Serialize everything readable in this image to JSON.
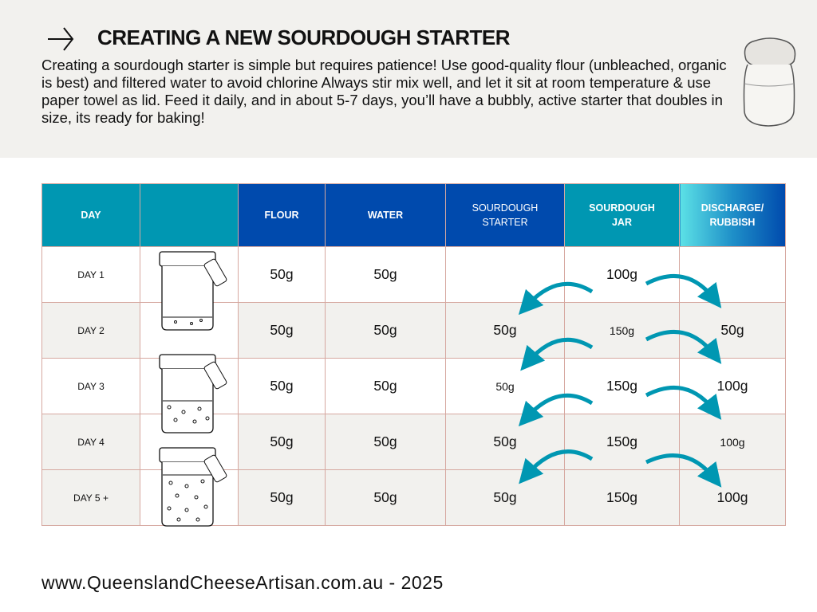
{
  "header": {
    "title": "CREATING A NEW SOURDOUGH STARTER",
    "intro": "Creating a sourdough starter is simple but requires patience! Use good-quality flour (unbleached, organic is best) and filtered water to avoid chlorine  Always stir mix well, and let it sit at room temperature & use paper towel as lid. Feed it daily, and in about 5-7 days, you’ll have a bubbly, active starter that doubles in size, its ready for baking!"
  },
  "table": {
    "headers": [
      "DAY",
      "",
      "FLOUR",
      "WATER",
      "SOURDOUGH STARTER",
      "SOURDOUGH JAR",
      "DISCHARGE/ RUBBISH"
    ],
    "rows": [
      {
        "day": "DAY 1",
        "flour": "50g",
        "water": "50g",
        "starter": "",
        "jar": "100g",
        "discharge": ""
      },
      {
        "day": "DAY 2",
        "flour": "50g",
        "water": "50g",
        "starter": "50g",
        "jar": "150g",
        "discharge": "50g"
      },
      {
        "day": "DAY 3",
        "flour": "50g",
        "water": "50g",
        "starter": "50g",
        "jar": "150g",
        "discharge": "100g"
      },
      {
        "day": "DAY 4",
        "flour": "50g",
        "water": "50g",
        "starter": "50g",
        "jar": "150g",
        "discharge": "100g"
      },
      {
        "day": "DAY 5 +",
        "flour": "50g",
        "water": "50g",
        "starter": "50g",
        "jar": "150g",
        "discharge": "100g"
      }
    ]
  },
  "colors": {
    "teal": "#0097b2",
    "blue": "#004aad",
    "light_bg": "#f2f1ee"
  },
  "footer": "www.QueenslandCheeseArtisan.com.au - 2025"
}
